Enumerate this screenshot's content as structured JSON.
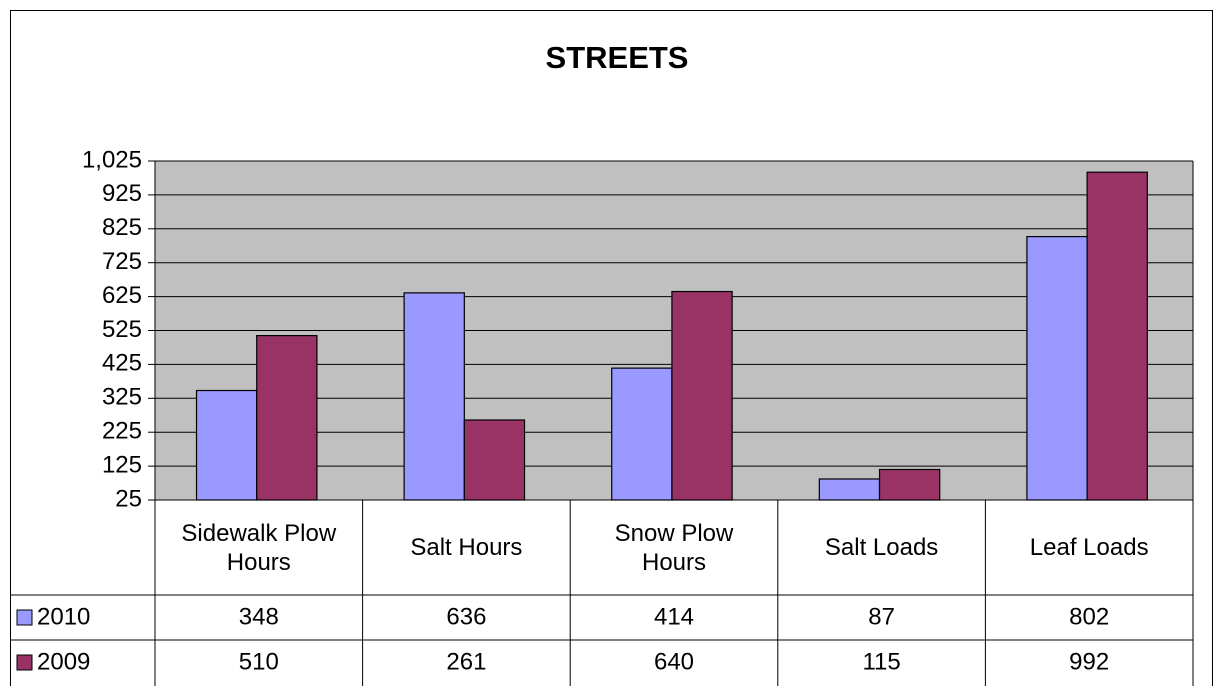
{
  "chart_data": {
    "type": "bar",
    "title": "STREETS",
    "categories": [
      "Sidewalk Plow Hours",
      "Salt Hours",
      "Snow Plow Hours",
      "Salt Loads",
      "Leaf Loads"
    ],
    "series": [
      {
        "name": "2010",
        "color": "#9999ff",
        "values": [
          348,
          636,
          414,
          87,
          802
        ]
      },
      {
        "name": "2009",
        "color": "#993366",
        "values": [
          510,
          261,
          640,
          115,
          992
        ]
      }
    ],
    "ylim": [
      25,
      1025
    ],
    "yticks": [
      25,
      125,
      225,
      325,
      425,
      525,
      625,
      725,
      825,
      925,
      {
        "value": 1025,
        "label": "1,025"
      }
    ],
    "grid": true
  }
}
